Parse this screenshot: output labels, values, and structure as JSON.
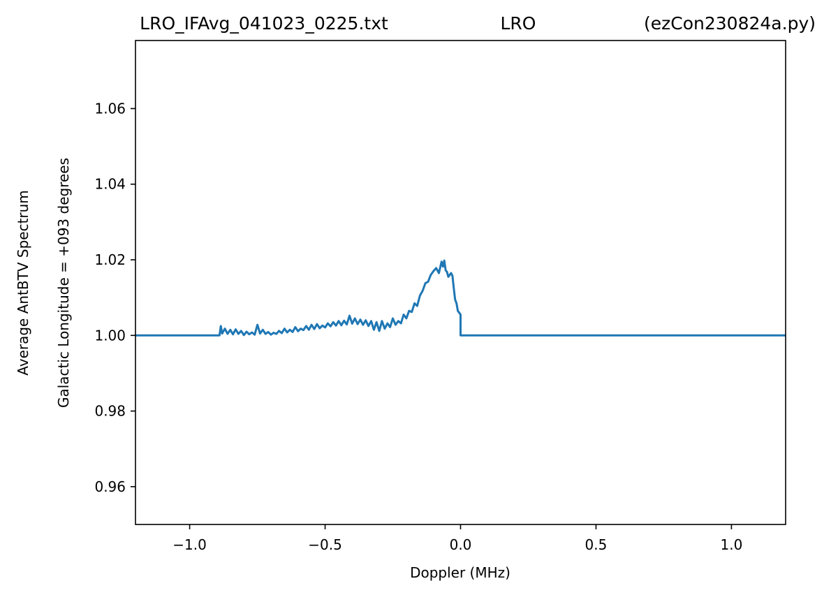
{
  "title": {
    "left": "LRO_IFAvg_041023_0225.txt",
    "center": "LRO",
    "right": "(ezCon230824a.py)"
  },
  "chart_data": {
    "type": "line",
    "xlabel": "Doppler (MHz)",
    "ylabel_lines": [
      "Average AntBTV Spectrum",
      "Galactic Longitude = +093 degrees"
    ],
    "xlim": [
      -1.2,
      1.2
    ],
    "ylim": [
      0.95,
      1.078
    ],
    "xticks": [
      -1.0,
      -0.5,
      0.0,
      0.5,
      1.0
    ],
    "xtick_labels": [
      "−1.0",
      "−0.5",
      "0.0",
      "0.5",
      "1.0"
    ],
    "yticks": [
      0.96,
      0.98,
      1.0,
      1.02,
      1.04,
      1.06
    ],
    "ytick_labels": [
      "0.96",
      "0.98",
      "1.00",
      "1.02",
      "1.04",
      "1.06"
    ],
    "grid": false,
    "series": [
      {
        "color": "#1f77b4",
        "x": [
          -1.2,
          -0.89,
          -0.885,
          -0.88,
          -0.87,
          -0.86,
          -0.85,
          -0.84,
          -0.83,
          -0.82,
          -0.81,
          -0.8,
          -0.79,
          -0.78,
          -0.77,
          -0.76,
          -0.75,
          -0.74,
          -0.73,
          -0.72,
          -0.71,
          -0.7,
          -0.69,
          -0.68,
          -0.67,
          -0.66,
          -0.65,
          -0.64,
          -0.63,
          -0.62,
          -0.61,
          -0.6,
          -0.59,
          -0.58,
          -0.57,
          -0.56,
          -0.55,
          -0.54,
          -0.53,
          -0.52,
          -0.51,
          -0.5,
          -0.49,
          -0.48,
          -0.47,
          -0.46,
          -0.45,
          -0.44,
          -0.43,
          -0.42,
          -0.41,
          -0.4,
          -0.39,
          -0.38,
          -0.37,
          -0.36,
          -0.35,
          -0.34,
          -0.33,
          -0.32,
          -0.31,
          -0.3,
          -0.29,
          -0.28,
          -0.27,
          -0.26,
          -0.25,
          -0.24,
          -0.23,
          -0.22,
          -0.21,
          -0.2,
          -0.19,
          -0.18,
          -0.17,
          -0.16,
          -0.15,
          -0.14,
          -0.13,
          -0.12,
          -0.11,
          -0.1,
          -0.09,
          -0.08,
          -0.07,
          -0.065,
          -0.06,
          -0.055,
          -0.05,
          -0.045,
          -0.04,
          -0.035,
          -0.03,
          -0.025,
          -0.02,
          -0.015,
          -0.01,
          -0.005,
          0.0,
          0.0,
          1.2
        ],
        "y": [
          1.0,
          1.0,
          1.0025,
          1.0005,
          1.0018,
          1.0004,
          1.0015,
          1.0003,
          1.0016,
          1.0004,
          1.0012,
          1.0001,
          1.001,
          1.0003,
          1.0008,
          1.0002,
          1.0028,
          1.0005,
          1.0015,
          1.0004,
          1.0009,
          1.0002,
          1.0007,
          1.0004,
          1.0012,
          1.0006,
          1.0018,
          1.0008,
          1.0015,
          1.0009,
          1.0022,
          1.0011,
          1.0018,
          1.0014,
          1.0025,
          1.0015,
          1.0028,
          1.0017,
          1.003,
          1.0019,
          1.0026,
          1.0021,
          1.0032,
          1.0024,
          1.0035,
          1.0026,
          1.0038,
          1.0027,
          1.0039,
          1.0029,
          1.0052,
          1.0031,
          1.0045,
          1.003,
          1.0042,
          1.0028,
          1.004,
          1.0025,
          1.0038,
          1.0015,
          1.0035,
          1.0012,
          1.0038,
          1.0018,
          1.0032,
          1.0022,
          1.0045,
          1.0028,
          1.0038,
          1.0032,
          1.0055,
          1.0045,
          1.0065,
          1.0062,
          1.0085,
          1.0078,
          1.0105,
          1.0118,
          1.0138,
          1.0142,
          1.016,
          1.017,
          1.0178,
          1.0165,
          1.0195,
          1.0182,
          1.0198,
          1.0172,
          1.0168,
          1.0155,
          1.016,
          1.0165,
          1.0158,
          1.0125,
          1.0095,
          1.0085,
          1.0065,
          1.006,
          1.0055,
          1.0,
          1.0
        ]
      }
    ]
  }
}
